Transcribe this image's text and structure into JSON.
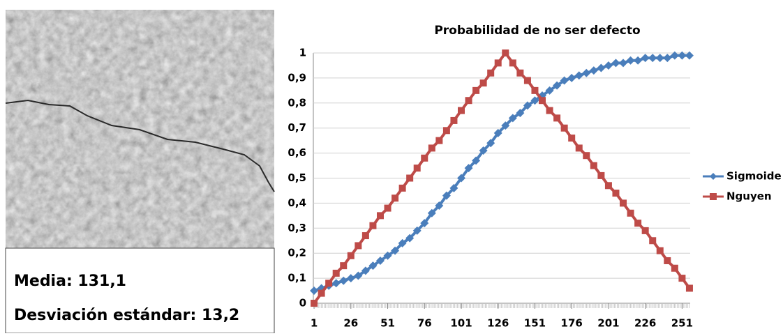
{
  "panel": {
    "stats": [
      "Media: 131,1",
      "Desviación estándar: 13,2"
    ]
  },
  "chart_data": {
    "type": "line",
    "title": "Probabilidad de no ser defecto",
    "x": [
      1,
      6,
      11,
      16,
      21,
      26,
      31,
      36,
      41,
      46,
      51,
      56,
      61,
      66,
      71,
      76,
      81,
      86,
      91,
      96,
      101,
      106,
      111,
      116,
      121,
      126,
      131,
      136,
      141,
      146,
      151,
      156,
      161,
      166,
      171,
      176,
      181,
      186,
      191,
      196,
      201,
      206,
      211,
      216,
      221,
      226,
      231,
      236,
      241,
      246,
      251,
      256
    ],
    "series": [
      {
        "name": "Sigmoide",
        "color": "#4a7ebb",
        "marker": "diamond",
        "values": [
          0.05,
          0.06,
          0.07,
          0.08,
          0.09,
          0.1,
          0.11,
          0.13,
          0.15,
          0.17,
          0.19,
          0.21,
          0.24,
          0.26,
          0.29,
          0.32,
          0.36,
          0.39,
          0.43,
          0.46,
          0.5,
          0.54,
          0.57,
          0.61,
          0.64,
          0.68,
          0.71,
          0.74,
          0.76,
          0.79,
          0.81,
          0.83,
          0.85,
          0.87,
          0.89,
          0.9,
          0.91,
          0.92,
          0.93,
          0.94,
          0.95,
          0.96,
          0.96,
          0.97,
          0.97,
          0.98,
          0.98,
          0.98,
          0.98,
          0.99,
          0.99,
          0.99
        ]
      },
      {
        "name": "Nguyen",
        "color": "#be4b48",
        "marker": "square",
        "values": [
          0,
          0.04,
          0.08,
          0.12,
          0.15,
          0.19,
          0.23,
          0.27,
          0.31,
          0.35,
          0.38,
          0.42,
          0.46,
          0.5,
          0.54,
          0.58,
          0.62,
          0.65,
          0.69,
          0.73,
          0.77,
          0.81,
          0.85,
          0.88,
          0.92,
          0.96,
          1,
          0.96,
          0.92,
          0.89,
          0.85,
          0.81,
          0.77,
          0.74,
          0.7,
          0.66,
          0.62,
          0.59,
          0.55,
          0.51,
          0.47,
          0.44,
          0.4,
          0.36,
          0.32,
          0.29,
          0.25,
          0.21,
          0.17,
          0.14,
          0.1,
          0.06
        ]
      }
    ],
    "xlim": [
      0.5,
      256.5
    ],
    "xticks": [
      1,
      26,
      51,
      76,
      101,
      126,
      151,
      176,
      201,
      226,
      251
    ],
    "ylim": [
      0,
      1
    ],
    "yticks": [
      0,
      {
        "value": 0.1,
        "label": "0,1"
      },
      {
        "value": 0.2,
        "label": "0,2"
      },
      {
        "value": 0.3,
        "label": "0,3"
      },
      {
        "value": 0.4,
        "label": "0,4"
      },
      {
        "value": 0.5,
        "label": "0,5"
      },
      {
        "value": 0.6,
        "label": "0,6"
      },
      {
        "value": 0.7,
        "label": "0,7"
      },
      {
        "value": 0.8,
        "label": "0,8"
      },
      {
        "value": 0.9,
        "label": "0,9"
      },
      1
    ],
    "grid": true,
    "legend": "right"
  }
}
